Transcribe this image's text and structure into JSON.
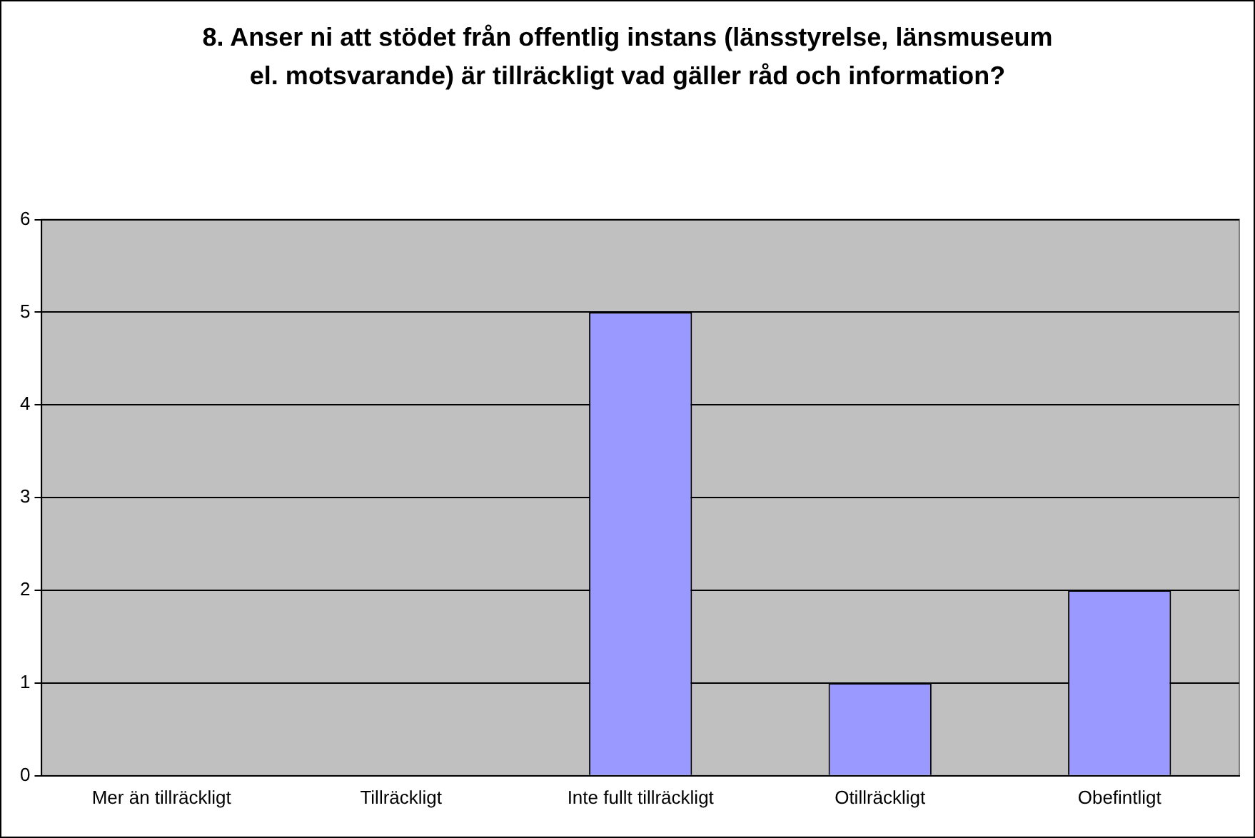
{
  "chart_data": {
    "type": "bar",
    "title": "8. Anser ni att stödet från offentlig instans (länsstyrelse, länsmuseum el. motsvarande) är tillräckligt vad gäller råd och information?",
    "categories": [
      "Mer än tillräckligt",
      "Tillräckligt",
      "Inte fullt tillräckligt",
      "Otillräckligt",
      "Obefintligt"
    ],
    "values": [
      0,
      0,
      5,
      1,
      2
    ],
    "color": "#9999ff",
    "ylim": [
      0,
      6
    ],
    "yticks": [
      0,
      1,
      2,
      3,
      4,
      5,
      6
    ],
    "grid": "y",
    "legend": false
  }
}
